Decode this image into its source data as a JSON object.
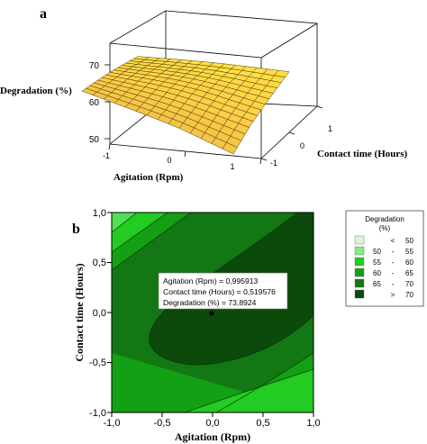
{
  "panel_a": {
    "label": "a",
    "z_axis_label": "Degradation (%)",
    "x_axis_label": "Agitation (Rpm)",
    "y_axis_label": "Contact time (Hours)",
    "z_ticks": [
      "70",
      "60",
      "50"
    ],
    "x_ticks": [
      "-1",
      "0",
      "1"
    ],
    "y_ticks": [
      "1",
      "0",
      "-1"
    ]
  },
  "panel_b": {
    "label": "b",
    "x_axis_label": "Agitation (Rpm)",
    "y_axis_label": "Contact time (Hours)",
    "x_ticks": [
      "-1,0",
      "-0,5",
      "0,0",
      "0,5",
      "1,0"
    ],
    "y_ticks": [
      "1,0",
      "0,5",
      "0,0",
      "-0,5",
      "-1,0"
    ],
    "tooltip": {
      "line1": "Agitation (Rpm) = 0,995913",
      "line2": "Contact time (Hours) = 0,519576",
      "line3": "Degradation (%) = 73,8924"
    }
  },
  "legend": {
    "title_line1": "Degradation",
    "title_line2": "(%)",
    "rows": [
      {
        "lo": "",
        "sep": "<",
        "hi": "50",
        "color": "#d8f5d8"
      },
      {
        "lo": "50",
        "sep": "-",
        "hi": "55",
        "color": "#80ee80"
      },
      {
        "lo": "55",
        "sep": "-",
        "hi": "60",
        "color": "#22cc22"
      },
      {
        "lo": "60",
        "sep": "-",
        "hi": "65",
        "color": "#14a014"
      },
      {
        "lo": "65",
        "sep": "-",
        "hi": "70",
        "color": "#137813"
      },
      {
        "lo": "",
        "sep": ">",
        "hi": "70",
        "color": "#0c4a0c"
      }
    ]
  },
  "chart_data": [
    {
      "type": "surface",
      "x_name": "Agitation (Rpm)",
      "y_name": "Contact time (Hours)",
      "z_name": "Degradation (%)",
      "x_range": [
        -1,
        1
      ],
      "y_range": [
        -1,
        1
      ],
      "z_range": [
        50,
        75
      ],
      "sample_points": [
        {
          "x": -1,
          "y": -1,
          "z": 69
        },
        {
          "x": -1,
          "y": 1,
          "z": 65
        },
        {
          "x": 1,
          "y": -1,
          "z": 54
        },
        {
          "x": 1,
          "y": 1,
          "z": 74
        },
        {
          "x": 0,
          "y": 0,
          "z": 72
        }
      ]
    },
    {
      "type": "contour",
      "x_name": "Agitation (Rpm)",
      "y_name": "Contact time (Hours)",
      "xlim": [
        -1,
        1
      ],
      "ylim": [
        -1,
        1
      ],
      "levels": [
        50,
        55,
        60,
        65,
        70
      ],
      "highlight_point": {
        "x": 0.995913,
        "y": 0.519576,
        "z": 73.8924
      }
    }
  ]
}
